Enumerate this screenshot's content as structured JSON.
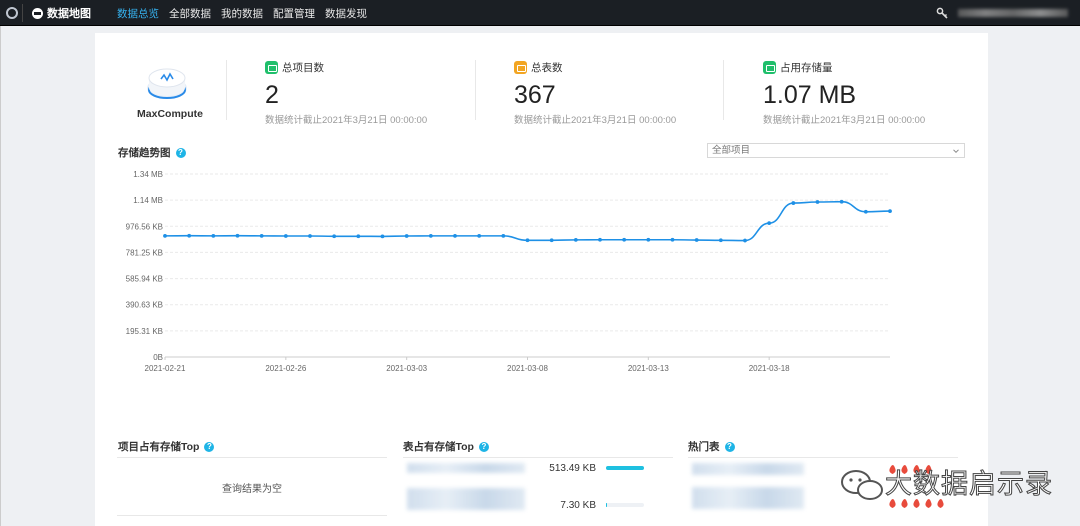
{
  "topbar": {
    "app_name": "数据地图",
    "nav": [
      {
        "label": "数据总览",
        "active": true
      },
      {
        "label": "全部数据",
        "active": false
      },
      {
        "label": "我的数据",
        "active": false
      },
      {
        "label": "配置管理",
        "active": false
      },
      {
        "label": "数据发现",
        "active": false
      }
    ],
    "accent_color": "#36b4f2"
  },
  "engine": {
    "name": "MaxCompute"
  },
  "stats": [
    {
      "title": "总项目数",
      "value": "2",
      "note": "数据统计截止2021年3月21日 00:00:00",
      "icon": "table-icon",
      "color": "#1fbf6b"
    },
    {
      "title": "总表数",
      "value": "367",
      "note": "数据统计截止2021年3月21日 00:00:00",
      "icon": "grid-icon",
      "color": "#f2a522"
    },
    {
      "title": "占用存储量",
      "value": "1.07 MB",
      "note": "数据统计截止2021年3月21日 00:00:00",
      "icon": "storage-icon",
      "color": "#1fbf6b"
    }
  ],
  "trend": {
    "title": "存储趋势图",
    "project_select": "全部项目"
  },
  "chart_data": {
    "type": "line",
    "title": "",
    "xlabel": "",
    "ylabel": "",
    "y_tick_labels": [
      "0B",
      "195.31 KB",
      "390.63 KB",
      "585.94 KB",
      "781.25 KB",
      "976.56 KB",
      "1.14 MB",
      "1.34 MB"
    ],
    "x_tick_labels": [
      "2021-02-21",
      "2021-02-26",
      "2021-03-03",
      "2021-03-08",
      "2021-03-13",
      "2021-03-18"
    ],
    "ylim_kb": [
      0,
      1367.19
    ],
    "x": [
      "2021-02-21",
      "2021-02-22",
      "2021-02-23",
      "2021-02-24",
      "2021-02-25",
      "2021-02-26",
      "2021-02-27",
      "2021-02-28",
      "2021-03-01",
      "2021-03-02",
      "2021-03-03",
      "2021-03-04",
      "2021-03-05",
      "2021-03-06",
      "2021-03-07",
      "2021-03-08",
      "2021-03-09",
      "2021-03-10",
      "2021-03-11",
      "2021-03-12",
      "2021-03-13",
      "2021-03-14",
      "2021-03-15",
      "2021-03-16",
      "2021-03-17",
      "2021-03-18",
      "2021-03-19",
      "2021-03-20",
      "2021-03-21",
      "2021-03-22",
      "2021-03-23"
    ],
    "series": [
      {
        "values_kb": [
          905,
          906,
          905,
          906,
          905,
          904,
          904,
          902,
          902,
          901,
          904,
          905,
          905,
          905,
          905,
          872,
          872,
          875,
          876,
          876,
          876,
          876,
          874,
          872,
          870,
          1000,
          1150,
          1158,
          1160,
          1085,
          1090
        ],
        "color": "#1e90e6"
      }
    ],
    "grid": true
  },
  "bottom": {
    "project_top_title": "项目占有存储Top",
    "project_top_empty": "查询结果为空",
    "table_top_title": "表占有存储Top",
    "table_top_rows": [
      {
        "value": "513.49 KB",
        "fraction": 1.0
      },
      {
        "value": "7.30 KB",
        "fraction": 0.014
      }
    ],
    "hot_title": "热门表"
  },
  "watermark": {
    "text": "大数据启示录"
  }
}
